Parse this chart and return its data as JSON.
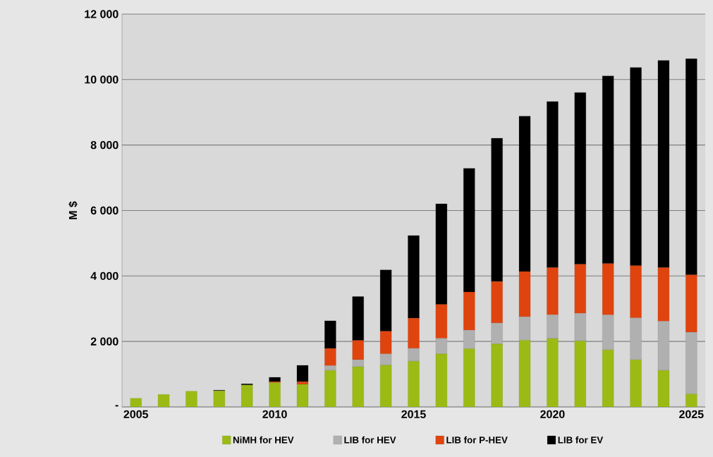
{
  "chart_data": {
    "type": "bar",
    "stacked": true,
    "ylabel": "M $",
    "categories": [
      "2005",
      null,
      null,
      null,
      null,
      "2010",
      null,
      null,
      null,
      null,
      "2015",
      null,
      null,
      null,
      null,
      "2020",
      null,
      null,
      null,
      null,
      "2025"
    ],
    "series": [
      {
        "name": "NiMH for HEV",
        "color": "#9bbb14",
        "values": [
          265,
          380,
          480,
          490,
          670,
          740,
          690,
          1115,
          1225,
          1275,
          1395,
          1620,
          1775,
          1920,
          2035,
          2090,
          2015,
          1740,
          1440,
          1115,
          395
        ]
      },
      {
        "name": "LIB for HEV",
        "color": "#b0b0b0",
        "values": [
          0,
          0,
          0,
          0,
          0,
          0,
          0,
          145,
          215,
          345,
          395,
          475,
          570,
          645,
          720,
          725,
          845,
          1070,
          1280,
          1500,
          1890
        ]
      },
      {
        "name": "LIB for P-HEV",
        "color": "#e0440e",
        "values": [
          0,
          0,
          0,
          0,
          0,
          30,
          80,
          525,
          590,
          690,
          920,
          1035,
          1165,
          1265,
          1380,
          1440,
          1495,
          1570,
          1595,
          1640,
          1750
        ]
      },
      {
        "name": "LIB for EV",
        "color": "#000000",
        "values": [
          0,
          0,
          0,
          20,
          35,
          135,
          500,
          845,
          1340,
          1875,
          2525,
          3075,
          3775,
          4380,
          4745,
          5075,
          5250,
          5730,
          6055,
          6330,
          6600
        ]
      }
    ],
    "ylim": [
      0,
      12000
    ],
    "yticks": [
      {
        "value": 0,
        "label": "-"
      },
      {
        "value": 2000,
        "label": "2 000"
      },
      {
        "value": 4000,
        "label": "4 000"
      },
      {
        "value": 6000,
        "label": "6 000"
      },
      {
        "value": 8000,
        "label": "8 000"
      },
      {
        "value": 10000,
        "label": "10 000"
      },
      {
        "value": 12000,
        "label": "12 000"
      }
    ],
    "grid": "y",
    "legend": "bottom"
  }
}
